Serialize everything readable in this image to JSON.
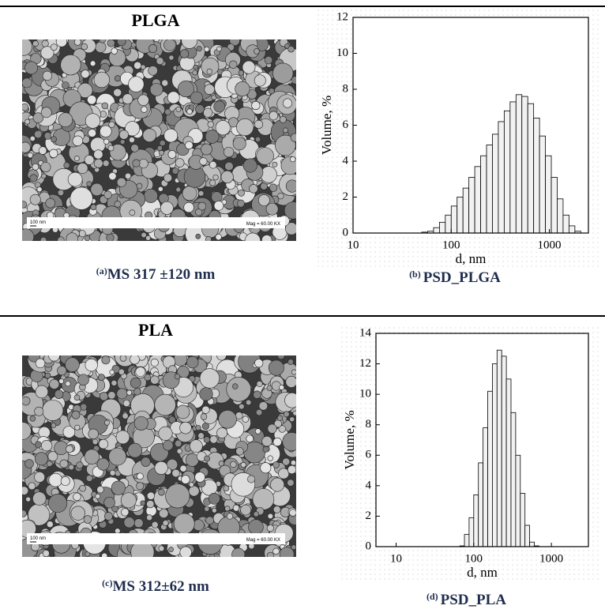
{
  "sem_panels": [
    {
      "title": "PLGA",
      "caption_label": "(a)",
      "caption": "MS 317 ±120 nm",
      "scale_bar": "100 nm",
      "magnification": "Mag = 60.00 KX"
    },
    {
      "title": "PLA",
      "caption_label": "(c)",
      "caption": "MS 312±62 nm",
      "scale_bar": "100 nm",
      "magnification": "Mag = 60.00 KX"
    }
  ],
  "chart_data": [
    {
      "type": "histogram",
      "caption_label": "(b)",
      "caption": "PSD_PLGA",
      "x_label": "d, nm",
      "y_label": "Volume, %",
      "log_x": true,
      "color": "#f2f2f2",
      "xlim": [
        10,
        2500
      ],
      "xticks": [
        10,
        100,
        1000
      ],
      "ylim": [
        0,
        12
      ],
      "yticks": [
        0,
        2,
        4,
        6,
        8,
        10,
        12
      ],
      "bins": [
        50.1,
        57.5,
        66.1,
        75.9,
        87.1,
        100,
        114.8,
        131.8,
        151.4,
        173.8,
        199.5,
        229.1,
        263.0,
        302.0,
        346.7,
        398.1,
        457.1,
        524.8,
        602.6,
        691.8,
        794.3,
        912.0,
        1047,
        1202,
        1380,
        1585,
        1820,
        2089,
        2399
      ],
      "values": [
        0.05,
        0.1,
        0.3,
        0.6,
        1.0,
        1.5,
        2.0,
        2.5,
        3.1,
        3.7,
        4.3,
        4.9,
        5.5,
        6.2,
        6.8,
        7.3,
        7.7,
        7.6,
        7.2,
        6.4,
        5.4,
        4.3,
        3.1,
        1.9,
        1.0,
        0.4,
        0.1,
        0.0
      ]
    },
    {
      "type": "histogram",
      "caption_label": "(d)",
      "caption": "PSD_PLA",
      "x_label": "d, nm",
      "y_label": "Volume, %",
      "log_x": true,
      "color": "#f2f2f2",
      "xlim": [
        5.5,
        3000
      ],
      "xticks": [
        10,
        100,
        1000
      ],
      "ylim": [
        0,
        14
      ],
      "yticks": [
        0,
        2,
        4,
        6,
        8,
        10,
        12,
        14
      ],
      "bins": [
        66.1,
        75.9,
        87.1,
        100,
        114.8,
        131.8,
        151.4,
        173.8,
        199.5,
        229.1,
        263.0,
        302.0,
        346.7,
        398.1,
        457.1,
        524.8,
        602.6,
        691.8
      ],
      "values": [
        0.05,
        0.8,
        1.9,
        3.4,
        5.5,
        7.8,
        10.2,
        12.0,
        12.9,
        12.5,
        11.0,
        8.8,
        6.0,
        3.5,
        1.4,
        0.3,
        0.05
      ]
    }
  ]
}
